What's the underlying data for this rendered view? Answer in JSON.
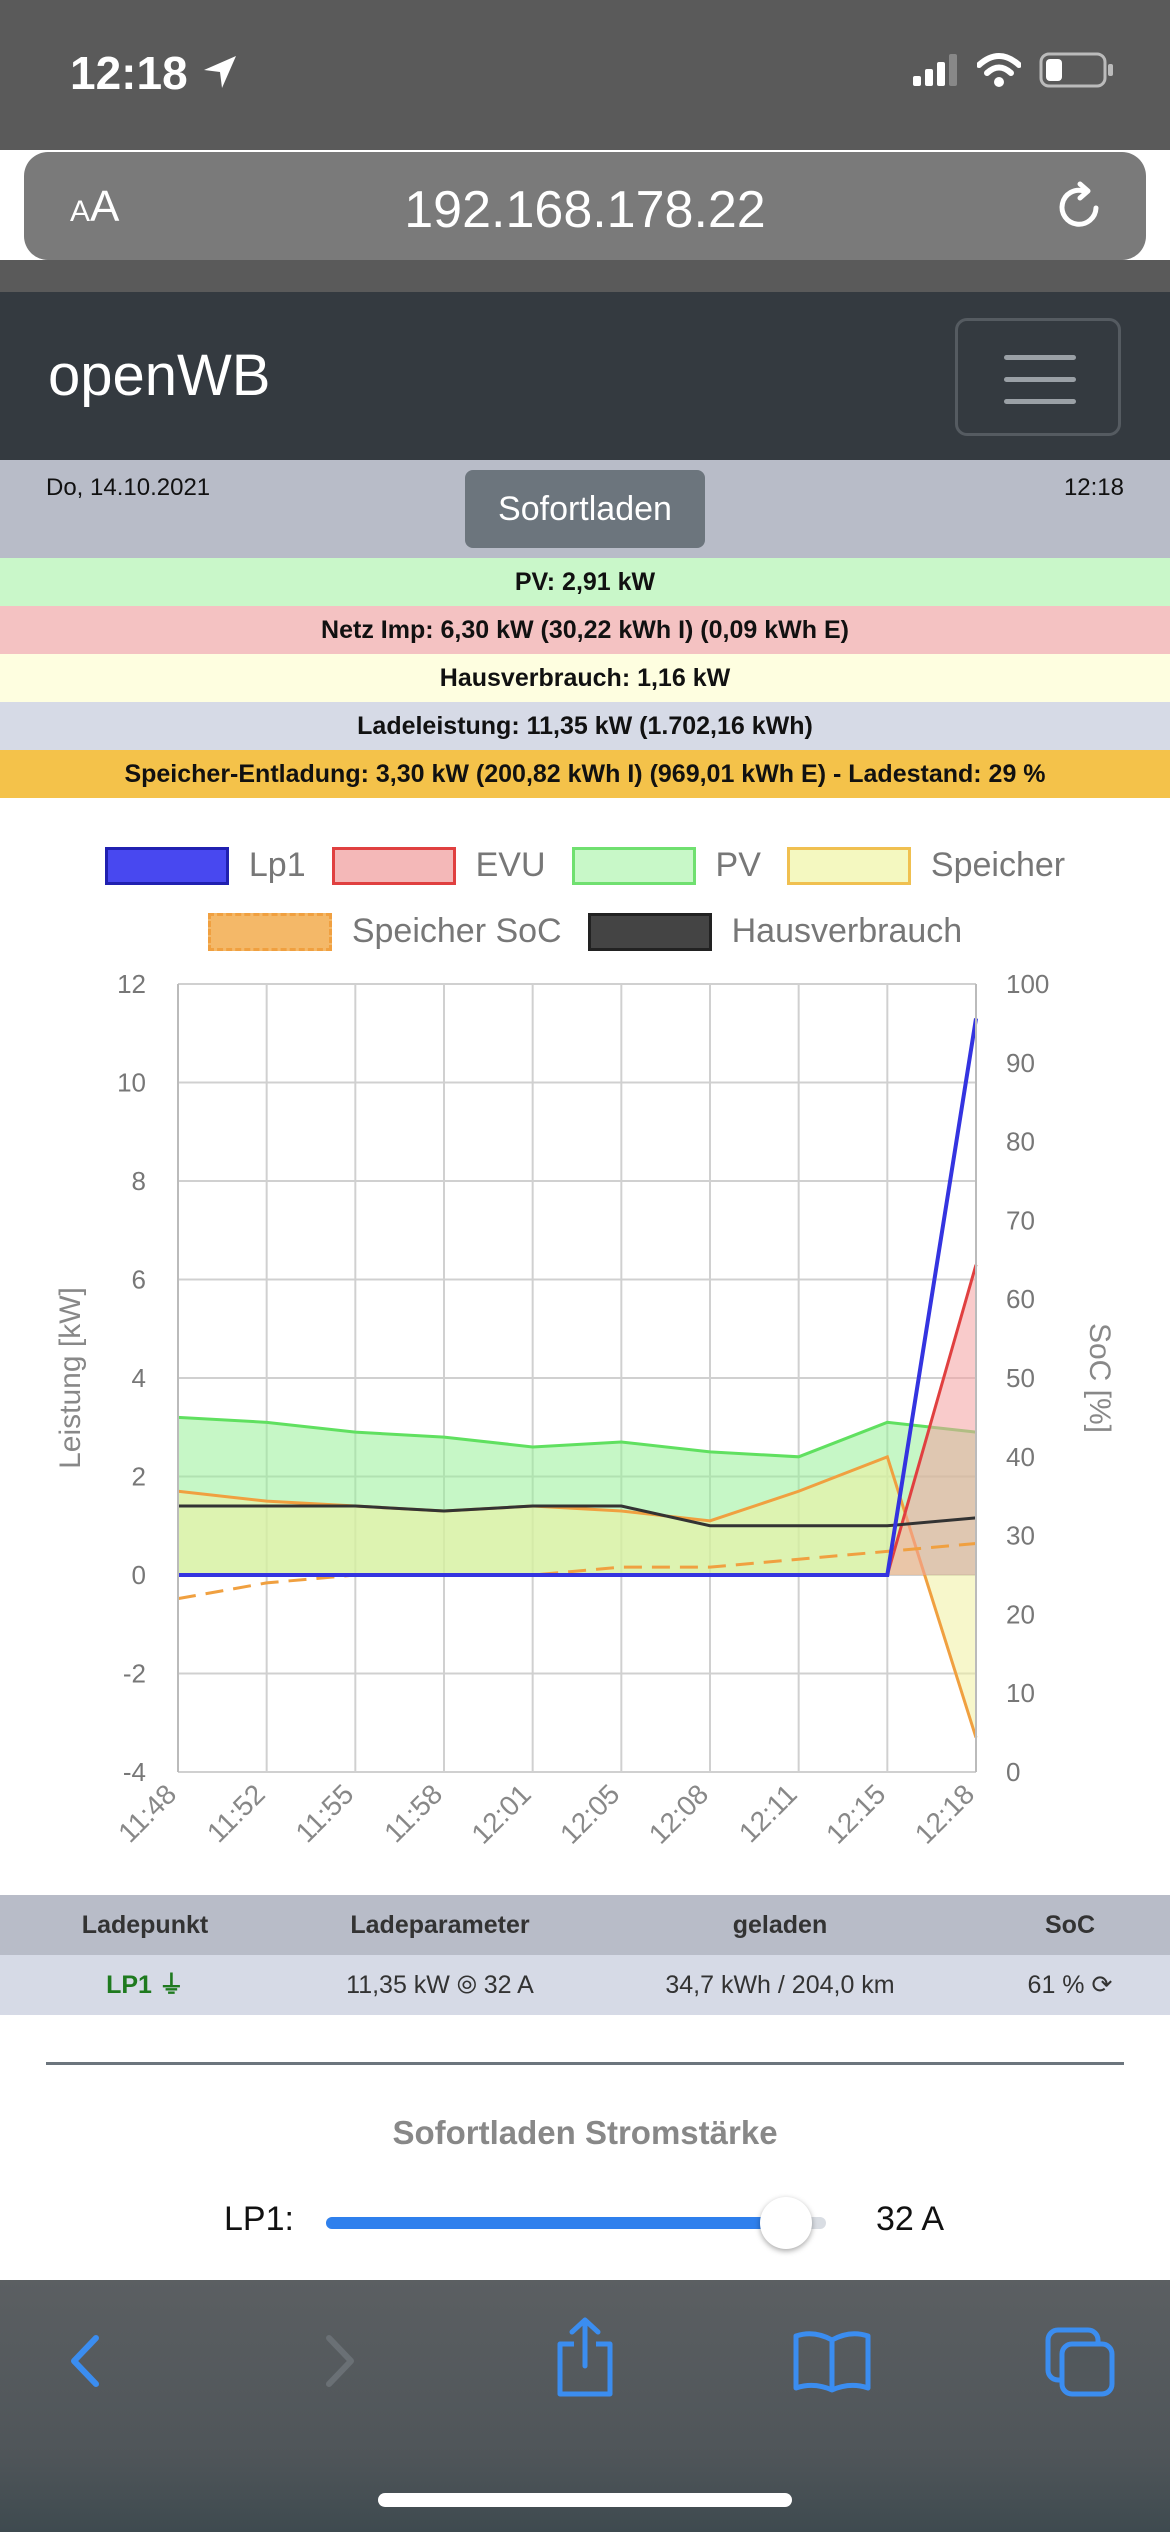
{
  "status_bar": {
    "time": "12:18"
  },
  "browser": {
    "aa_label": "AA",
    "url": "192.168.178.22"
  },
  "navbar": {
    "brand": "openWB"
  },
  "header": {
    "date": "Do, 14.10.2021",
    "mode": "Sofortladen",
    "time": "12:18"
  },
  "info": {
    "pv": "PV: 2,91 kW",
    "netz": "Netz Imp: 6,30 kW (30,22 kWh I) (0,09 kWh E)",
    "haus": "Hausverbrauch: 1,16 kW",
    "lade": "Ladeleistung: 11,35 kW (1.702,16 kWh)",
    "speicher": "Speicher-Entladung: 3,30 kW (200,82 kWh I) (969,01 kWh E) - Ladestand: 29 %"
  },
  "colors": {
    "pv_bg": "#c9f7c9",
    "netz_bg": "#f4c2c2",
    "haus_bg": "#fefee0",
    "lade_bg": "#d6dae6",
    "speicher_bg": "#f4c24a",
    "lp1": "#3434e0",
    "evu": "#e04040",
    "pv": "#60e060",
    "speicher": "#f0f0a0",
    "soc": "#f0a040",
    "haus": "#333333"
  },
  "legend": {
    "lp1": "Lp1",
    "evu": "EVU",
    "pv": "PV",
    "speicher": "Speicher",
    "soc": "Speicher SoC",
    "haus": "Hausverbrauch"
  },
  "chart_data": {
    "type": "line",
    "ylabel": "Leistung [kW]",
    "y2label": "SoC [%]",
    "ylim": [
      -4,
      12
    ],
    "y2lim": [
      0,
      100
    ],
    "yticks": [
      "12",
      "10",
      "8",
      "6",
      "4",
      "2",
      "0",
      "-2",
      "-4"
    ],
    "y2ticks": [
      "100",
      "90",
      "80",
      "70",
      "60",
      "50",
      "40",
      "30",
      "20",
      "10",
      "0"
    ],
    "x": [
      "11:48",
      "11:52",
      "11:55",
      "11:58",
      "12:01",
      "12:05",
      "12:08",
      "12:11",
      "12:15",
      "12:18"
    ],
    "grid": true,
    "series": [
      {
        "name": "Lp1",
        "values": [
          0,
          0,
          0,
          0,
          0,
          0,
          0,
          0,
          0,
          11.3
        ]
      },
      {
        "name": "EVU",
        "values": [
          0,
          0,
          0,
          0,
          0,
          0,
          0,
          0,
          0,
          6.3
        ]
      },
      {
        "name": "PV",
        "values": [
          3.2,
          3.1,
          2.9,
          2.8,
          2.6,
          2.7,
          2.5,
          2.4,
          3.1,
          2.9
        ]
      },
      {
        "name": "Speicher",
        "values": [
          1.7,
          1.5,
          1.4,
          1.3,
          1.4,
          1.3,
          1.1,
          1.7,
          2.4,
          -3.3
        ]
      },
      {
        "name": "Speicher SoC",
        "values": [
          22,
          24,
          25,
          25,
          25,
          26,
          26,
          27,
          28,
          29
        ]
      },
      {
        "name": "Hausverbrauch",
        "values": [
          1.4,
          1.4,
          1.4,
          1.3,
          1.4,
          1.4,
          1.0,
          1.0,
          1.0,
          1.16
        ]
      }
    ]
  },
  "table": {
    "headers": {
      "lp": "Ladepunkt",
      "param": "Ladeparameter",
      "geladen": "geladen",
      "soc": "SoC"
    },
    "row": {
      "lp": "LP1",
      "param": "11,35 kW ⦾ 32 A",
      "geladen": "34,7 kWh / 204,0 km",
      "soc": "61 %"
    }
  },
  "slider": {
    "title": "Sofortladen Stromstärke",
    "label": "LP1:",
    "value": "32 A",
    "fraction": 0.92
  }
}
